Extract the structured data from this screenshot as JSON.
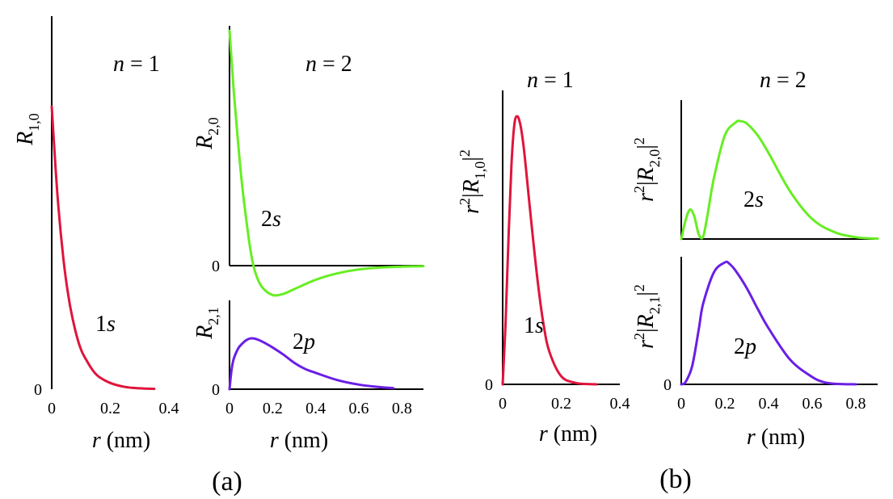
{
  "figure_labels": {
    "a": "(a)",
    "b": "(b)"
  },
  "chart_data": [
    {
      "type": "line",
      "panel": "a",
      "title": "n = 1",
      "ylabel": {
        "base": "R",
        "sub": "1,0"
      },
      "xlabel": "r (nm)",
      "xlim": [
        0,
        0.4
      ],
      "ylim": [
        0,
        1
      ],
      "xticks": [
        "0",
        "0.2",
        "0.4"
      ],
      "yticks": [
        "0"
      ],
      "series": [
        {
          "name": "1s",
          "color": "#e0143c",
          "x": [
            0,
            0.02,
            0.04,
            0.06,
            0.08,
            0.1,
            0.12,
            0.14,
            0.16,
            0.2,
            0.25,
            0.3,
            0.35
          ],
          "y": [
            1.0,
            0.68,
            0.46,
            0.31,
            0.21,
            0.14,
            0.1,
            0.067,
            0.045,
            0.022,
            0.008,
            0.003,
            0.001
          ]
        }
      ]
    },
    {
      "type": "line",
      "panel": "a",
      "title": "n = 2",
      "ylabel": {
        "base": "R",
        "sub": "2,0"
      },
      "xlabel": "",
      "xlim": [
        0,
        0.9
      ],
      "ylim": [
        -0.14,
        1
      ],
      "xticks": [],
      "yticks": [
        "0"
      ],
      "series": [
        {
          "name": "2s",
          "color": "#66ee22",
          "x": [
            0,
            0.02,
            0.04,
            0.06,
            0.08,
            0.1,
            0.12,
            0.15,
            0.2,
            0.25,
            0.3,
            0.4,
            0.5,
            0.6,
            0.7,
            0.8,
            0.9
          ],
          "y": [
            1.0,
            0.74,
            0.52,
            0.33,
            0.18,
            0.05,
            -0.03,
            -0.09,
            -0.125,
            -0.12,
            -0.1,
            -0.06,
            -0.033,
            -0.016,
            -0.008,
            -0.004,
            -0.002
          ]
        }
      ]
    },
    {
      "type": "line",
      "panel": "a",
      "title": "",
      "ylabel": {
        "base": "R",
        "sub": "2,1"
      },
      "xlabel": "r (nm)",
      "xlim": [
        0,
        0.9
      ],
      "ylim": [
        0,
        1
      ],
      "xticks": [
        "0",
        "0.2",
        "0.4",
        "0.6",
        "0.8"
      ],
      "yticks": [
        "0"
      ],
      "series": [
        {
          "name": "2p",
          "color": "#6a1ee6",
          "x": [
            0,
            0.01,
            0.02,
            0.04,
            0.06,
            0.08,
            0.1,
            0.12,
            0.15,
            0.2,
            0.25,
            0.3,
            0.35,
            0.4,
            0.5,
            0.6,
            0.7,
            0.76
          ],
          "y": [
            0,
            0.4,
            0.6,
            0.8,
            0.9,
            0.97,
            1.0,
            0.99,
            0.94,
            0.82,
            0.68,
            0.52,
            0.4,
            0.32,
            0.18,
            0.09,
            0.04,
            0.02
          ]
        }
      ]
    },
    {
      "type": "line",
      "panel": "b",
      "title": "n = 1",
      "ylabel": {
        "base": "r",
        "sup": "2",
        "bar": "|",
        "sym": "R",
        "sub": "1,0",
        "bar2": "|",
        "sup2": "2"
      },
      "xlabel": "r (nm)",
      "xlim": [
        0,
        0.4
      ],
      "ylim": [
        0,
        1
      ],
      "xticks": [
        "0",
        "0.2",
        "0.4"
      ],
      "yticks": [
        "0"
      ],
      "series": [
        {
          "name": "1s",
          "color": "#e0143c",
          "x": [
            0,
            0.01,
            0.02,
            0.03,
            0.04,
            0.05,
            0.06,
            0.07,
            0.08,
            0.1,
            0.12,
            0.14,
            0.16,
            0.2,
            0.25,
            0.3,
            0.32
          ],
          "y": [
            0,
            0.23,
            0.55,
            0.82,
            0.97,
            1.0,
            0.97,
            0.9,
            0.8,
            0.58,
            0.38,
            0.22,
            0.12,
            0.03,
            0.005,
            0.001,
            0
          ]
        }
      ]
    },
    {
      "type": "line",
      "panel": "b",
      "title": "n = 2",
      "ylabel": {
        "base": "r",
        "sup": "2",
        "bar": "|",
        "sym": "R",
        "sub": "2,0",
        "bar2": "|",
        "sup2": "2"
      },
      "xlabel": "",
      "xlim": [
        0,
        0.9
      ],
      "ylim": [
        0,
        1
      ],
      "xticks": [],
      "yticks": [],
      "series": [
        {
          "name": "2s",
          "color": "#66ee22",
          "x": [
            0,
            0.02,
            0.04,
            0.06,
            0.08,
            0.1,
            0.12,
            0.15,
            0.2,
            0.25,
            0.27,
            0.3,
            0.35,
            0.4,
            0.5,
            0.6,
            0.7,
            0.8,
            0.9
          ],
          "y": [
            0,
            0.16,
            0.25,
            0.19,
            0.04,
            0.02,
            0.2,
            0.52,
            0.88,
            0.99,
            1.0,
            0.98,
            0.88,
            0.73,
            0.4,
            0.17,
            0.06,
            0.015,
            0.003
          ]
        }
      ]
    },
    {
      "type": "line",
      "panel": "b",
      "title": "",
      "ylabel": {
        "base": "r",
        "sup": "2",
        "bar": "|",
        "sym": "R",
        "sub": "2,1",
        "bar2": "|",
        "sup2": "2"
      },
      "xlabel": "r (nm)",
      "xlim": [
        0,
        0.9
      ],
      "ylim": [
        0,
        1
      ],
      "xticks": [
        "0",
        "0.2",
        "0.4",
        "0.6",
        "0.8"
      ],
      "yticks": [
        "0"
      ],
      "series": [
        {
          "name": "2p",
          "color": "#6a1ee6",
          "x": [
            0,
            0.02,
            0.05,
            0.08,
            0.1,
            0.15,
            0.2,
            0.22,
            0.25,
            0.3,
            0.35,
            0.4,
            0.5,
            0.6,
            0.65,
            0.7,
            0.8
          ],
          "y": [
            0,
            0.02,
            0.15,
            0.45,
            0.66,
            0.92,
            1.0,
            0.99,
            0.93,
            0.79,
            0.62,
            0.46,
            0.2,
            0.06,
            0.02,
            0.005,
            0
          ]
        }
      ]
    }
  ]
}
